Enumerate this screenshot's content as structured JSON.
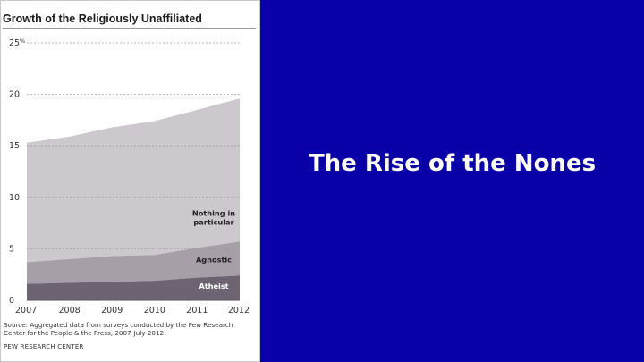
{
  "slide": {
    "title": "The Rise of the Nones",
    "background_color": "#0a00a8"
  },
  "chart_data": {
    "type": "area",
    "stacked": true,
    "title": "Growth of the Religiously Unaffiliated",
    "y_unit": "%",
    "x": [
      2007,
      2008,
      2009,
      2010,
      2011,
      2012
    ],
    "ylim": [
      0,
      25
    ],
    "y_ticks": [
      0,
      5,
      10,
      15,
      20,
      25
    ],
    "grid": true,
    "series": [
      {
        "name": "Atheist",
        "values": [
          1.6,
          1.7,
          1.8,
          1.9,
          2.2,
          2.4
        ],
        "color": "#6e6370"
      },
      {
        "name": "Agnostic",
        "values": [
          2.1,
          2.3,
          2.5,
          2.5,
          2.9,
          3.3
        ],
        "color": "#a79fa8"
      },
      {
        "name": "Nothing in particular",
        "values": [
          11.6,
          11.9,
          12.5,
          13.0,
          13.4,
          13.9
        ],
        "color": "#cdc7ce"
      }
    ],
    "series_label_lines": {
      "Nothing in particular": [
        "Nothing in",
        "particular"
      ]
    },
    "source": "Source: Aggregated data from surveys conducted by the Pew Research Center for the People & the Press, 2007-July 2012.",
    "organization": "PEW RESEARCH CENTER"
  }
}
